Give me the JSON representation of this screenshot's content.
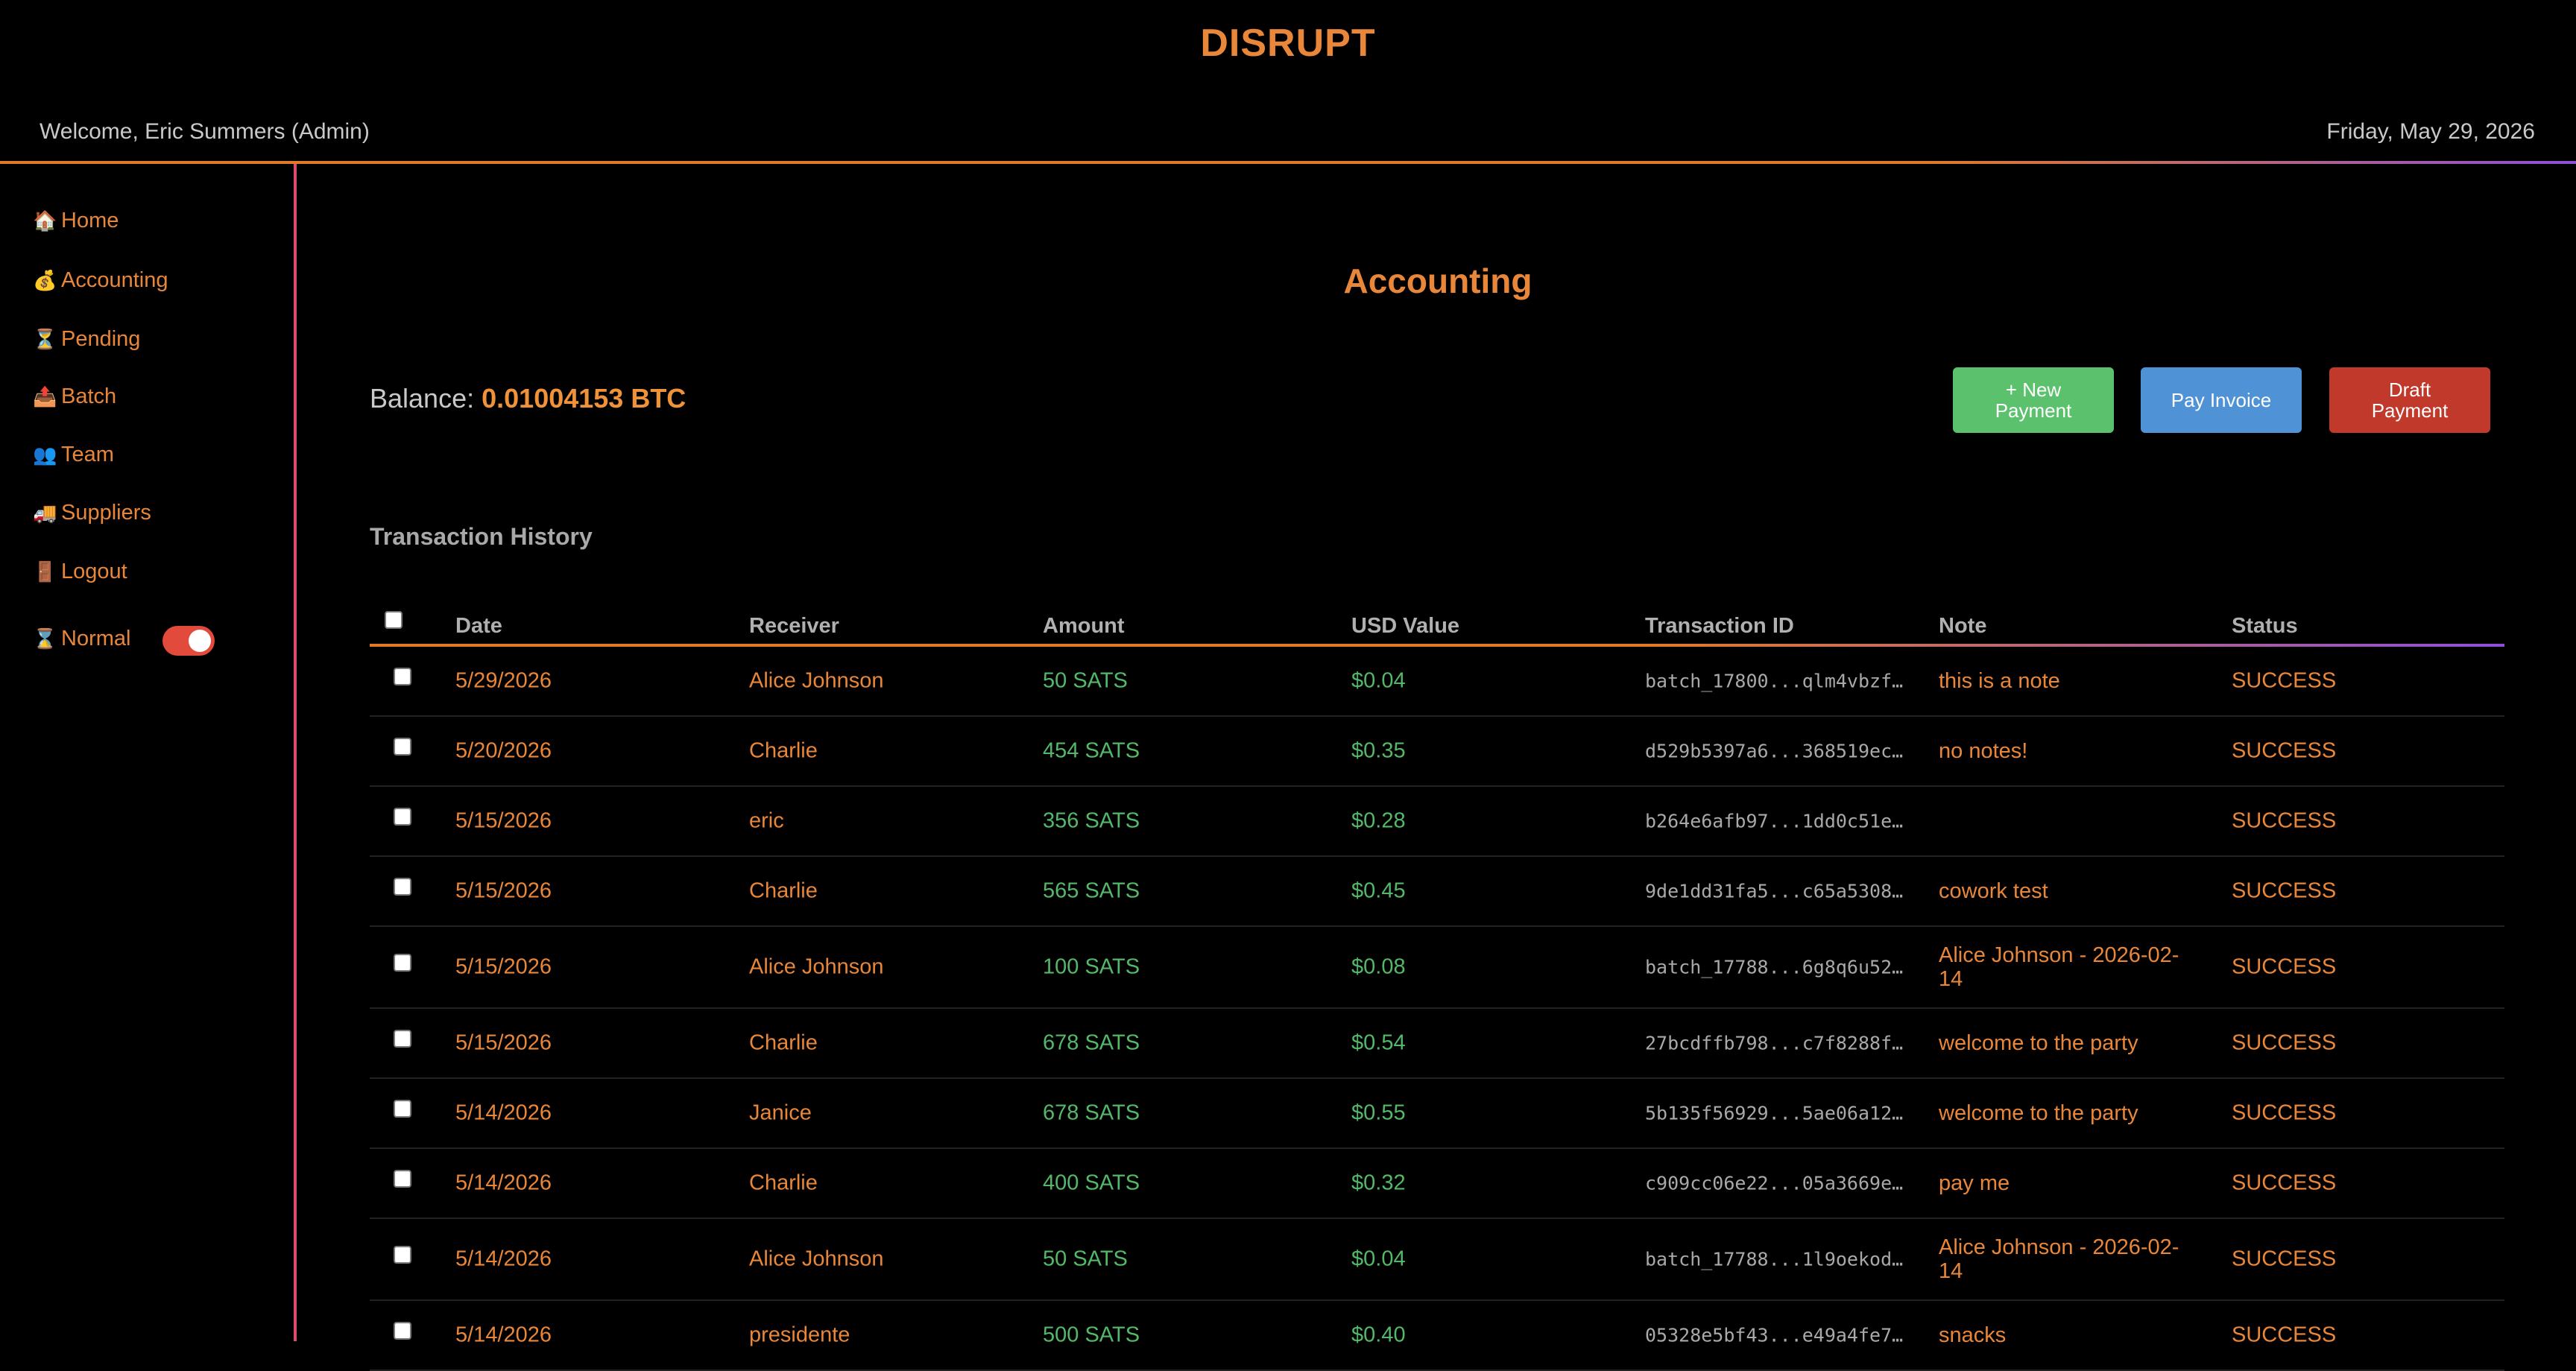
{
  "header": {
    "brand": "DISRUPT",
    "welcome": "Welcome, Eric Summers (Admin)",
    "date": "Friday, May 29, 2026"
  },
  "sidebar": {
    "items": [
      {
        "icon": "🏠",
        "icon_name": "home-icon",
        "label": "Home"
      },
      {
        "icon": "💰",
        "icon_name": "money-bag-icon",
        "label": "Accounting"
      },
      {
        "icon": "⏳",
        "icon_name": "hourglass-icon",
        "label": "Pending"
      },
      {
        "icon": "📤",
        "icon_name": "upload-tray-icon",
        "label": "Batch"
      },
      {
        "icon": "👥",
        "icon_name": "team-icon",
        "label": "Team"
      },
      {
        "icon": "🚚",
        "icon_name": "delivery-truck-icon",
        "label": " Suppliers"
      },
      {
        "icon": "🚪",
        "icon_name": "door-icon",
        "label": "Logout"
      }
    ],
    "mode": {
      "icon": "⌛",
      "icon_name": "mode-icon",
      "label": "Normal",
      "toggle_on": true
    }
  },
  "main": {
    "title": "Accounting",
    "balance_label": "Balance:",
    "balance_value": "0.01004153 BTC",
    "buttons": {
      "new_payment": "+ New Payment",
      "pay_invoice": "Pay Invoice",
      "draft_payment": "Draft Payment"
    },
    "section_title": "Transaction History",
    "columns": [
      "Date",
      "Receiver",
      "Amount",
      "USD Value",
      "Transaction ID",
      "Note",
      "Status"
    ],
    "rows": [
      {
        "date": "5/29/2026",
        "receiver": "Alice Johnson",
        "amount": "50 SATS",
        "usd": "$0.04",
        "txid": "batch_17800...qlm4vbzf…",
        "note": "this is a note",
        "status": "SUCCESS"
      },
      {
        "date": "5/20/2026",
        "receiver": "Charlie",
        "amount": "454 SATS",
        "usd": "$0.35",
        "txid": "d529b5397a6...368519ec…",
        "note": "no notes!",
        "status": "SUCCESS"
      },
      {
        "date": "5/15/2026",
        "receiver": "eric",
        "amount": "356 SATS",
        "usd": "$0.28",
        "txid": "b264e6afb97...1dd0c51e…",
        "note": "",
        "status": "SUCCESS"
      },
      {
        "date": "5/15/2026",
        "receiver": "Charlie",
        "amount": "565 SATS",
        "usd": "$0.45",
        "txid": "9de1dd31fa5...c65a5308…",
        "note": "cowork test",
        "status": "SUCCESS"
      },
      {
        "date": "5/15/2026",
        "receiver": "Alice Johnson",
        "amount": "100 SATS",
        "usd": "$0.08",
        "txid": "batch_17788...6g8q6u52…",
        "note": "Alice Johnson - 2026-02-14",
        "status": "SUCCESS"
      },
      {
        "date": "5/15/2026",
        "receiver": "Charlie",
        "amount": "678 SATS",
        "usd": "$0.54",
        "txid": "27bcdffb798...c7f8288f…",
        "note": "welcome to the party",
        "status": "SUCCESS"
      },
      {
        "date": "5/14/2026",
        "receiver": "Janice",
        "amount": "678 SATS",
        "usd": "$0.55",
        "txid": "5b135f56929...5ae06a12…",
        "note": "welcome to the party",
        "status": "SUCCESS"
      },
      {
        "date": "5/14/2026",
        "receiver": "Charlie",
        "amount": "400 SATS",
        "usd": "$0.32",
        "txid": "c909cc06e22...05a3669e…",
        "note": "pay me",
        "status": "SUCCESS"
      },
      {
        "date": "5/14/2026",
        "receiver": "Alice Johnson",
        "amount": "50 SATS",
        "usd": "$0.04",
        "txid": "batch_17788...1l9oekod…",
        "note": "Alice Johnson - 2026-02-14",
        "status": "SUCCESS"
      },
      {
        "date": "5/14/2026",
        "receiver": "presidente",
        "amount": "500 SATS",
        "usd": "$0.40",
        "txid": "05328e5bf43...e49a4fe7…",
        "note": "snacks",
        "status": "SUCCESS"
      }
    ]
  }
}
